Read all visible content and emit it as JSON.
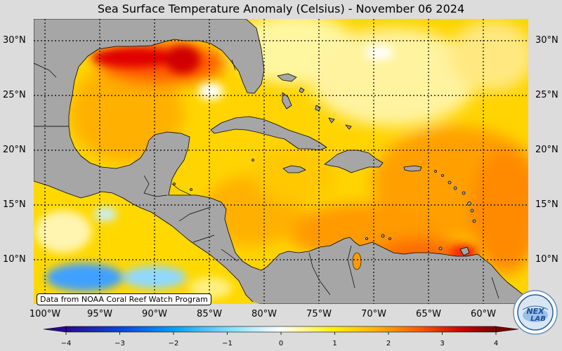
{
  "title": "Sea Surface Temperature Anomaly (Celsius) - November 06 2024",
  "credit": "Data from NOAA Coral Reef Watch Program",
  "logo_text": "NEXLAB",
  "lat_labels": [
    "30°N",
    "25°N",
    "20°N",
    "15°N",
    "10°N"
  ],
  "lon_labels": [
    "100°W",
    "95°W",
    "90°W",
    "85°W",
    "80°W",
    "75°W",
    "70°W",
    "65°W",
    "60°W"
  ],
  "colorbar": {
    "min": -4,
    "max": 4,
    "ticks": [
      "−4",
      "−3",
      "−2",
      "−1",
      "0",
      "1",
      "2",
      "3",
      "4"
    ],
    "colors": [
      "#2a0a8c",
      "#0a46e6",
      "#00a0ff",
      "#7fe0ff",
      "#ffffff",
      "#fff200",
      "#ffb400",
      "#ff5a00",
      "#d00000",
      "#780000"
    ]
  },
  "land_color": "#a6a6a6"
}
